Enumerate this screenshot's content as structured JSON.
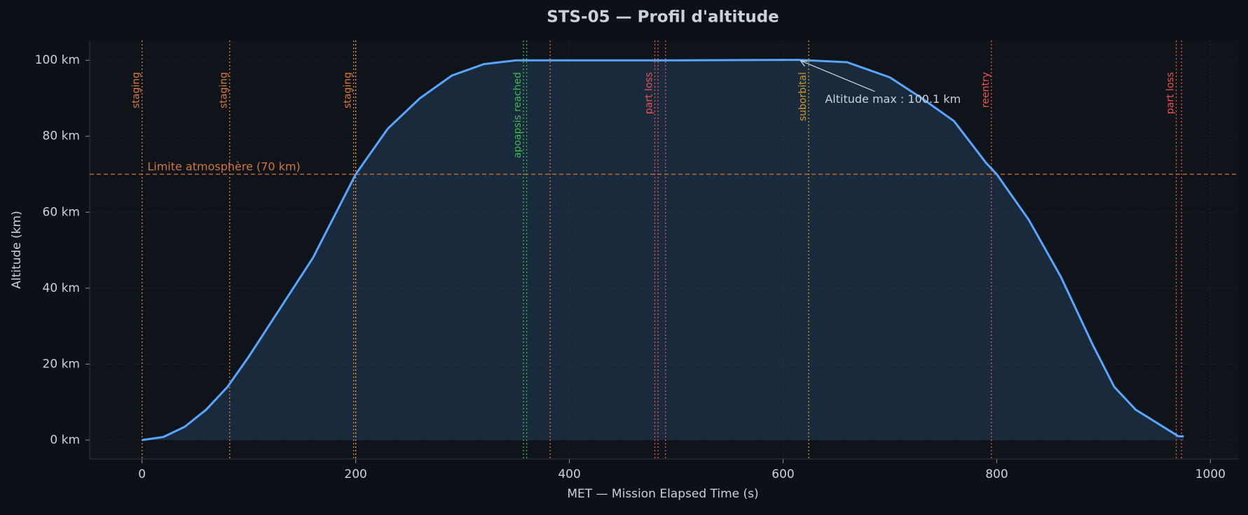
{
  "chart_data": {
    "type": "line",
    "title": "STS-05 — Profil d'altitude",
    "x_label": "MET — Mission Elapsed Time (s)",
    "y_label": "Altitude (km)",
    "color": "#58a6ff",
    "x": [
      0,
      20,
      40,
      60,
      80,
      100,
      130,
      160,
      200,
      230,
      260,
      290,
      320,
      350,
      400,
      500,
      600,
      615,
      660,
      700,
      730,
      760,
      790,
      800,
      830,
      860,
      890,
      910,
      930,
      950,
      970,
      975
    ],
    "values": [
      0,
      0.8,
      3.5,
      8,
      14,
      22,
      35,
      48,
      70,
      82,
      90,
      96,
      99,
      100,
      100,
      100,
      100.1,
      100.1,
      99.5,
      95.5,
      90,
      84,
      73,
      70,
      58,
      43,
      25,
      14,
      8,
      4.5,
      1,
      1
    ],
    "xlim": [
      -49,
      1026
    ],
    "ylim": [
      -5,
      105.2
    ],
    "xticks": [
      0,
      200,
      400,
      600,
      800,
      1000
    ],
    "yticks": [
      {
        "value": 0,
        "label": "0 km"
      },
      {
        "value": 20,
        "label": "20 km"
      },
      {
        "value": 40,
        "label": "40 km"
      },
      {
        "value": 60,
        "label": "60 km"
      },
      {
        "value": 80,
        "label": "80 km"
      },
      {
        "value": 100,
        "label": "100 km"
      }
    ],
    "grid": true,
    "reference_line": {
      "y": 70,
      "label": "Limite atmosphère (70 km)",
      "color": "#d2763a"
    },
    "events": [
      {
        "x": 0,
        "label": "staging",
        "color": "#e07b39"
      },
      {
        "x": 82,
        "label": "staging",
        "color": "#e07b39"
      },
      {
        "x": 198,
        "label": "staging",
        "color": "#e07b39"
      },
      {
        "x": 200,
        "label": null,
        "color": "#e0a83a"
      },
      {
        "x": 357,
        "label": "apoapsis reached",
        "color": "#3fb950"
      },
      {
        "x": 360,
        "label": null,
        "color": "#3fb950"
      },
      {
        "x": 382,
        "label": null,
        "color": "#e0703a"
      },
      {
        "x": 480,
        "label": "part loss",
        "color": "#f0524f"
      },
      {
        "x": 483,
        "label": null,
        "color": "#f0524f"
      },
      {
        "x": 490,
        "label": null,
        "color": "#f0524f"
      },
      {
        "x": 624,
        "label": "suborbital",
        "color": "#d29922"
      },
      {
        "x": 795,
        "label": "reentry",
        "color": "#f0524f"
      },
      {
        "x": 968,
        "label": "part loss",
        "color": "#f0524f"
      },
      {
        "x": 973,
        "label": null,
        "color": "#f0524f"
      }
    ],
    "annotation": {
      "text": "Altitude max : 100.1 km",
      "x": 615,
      "y": 100.1
    }
  }
}
